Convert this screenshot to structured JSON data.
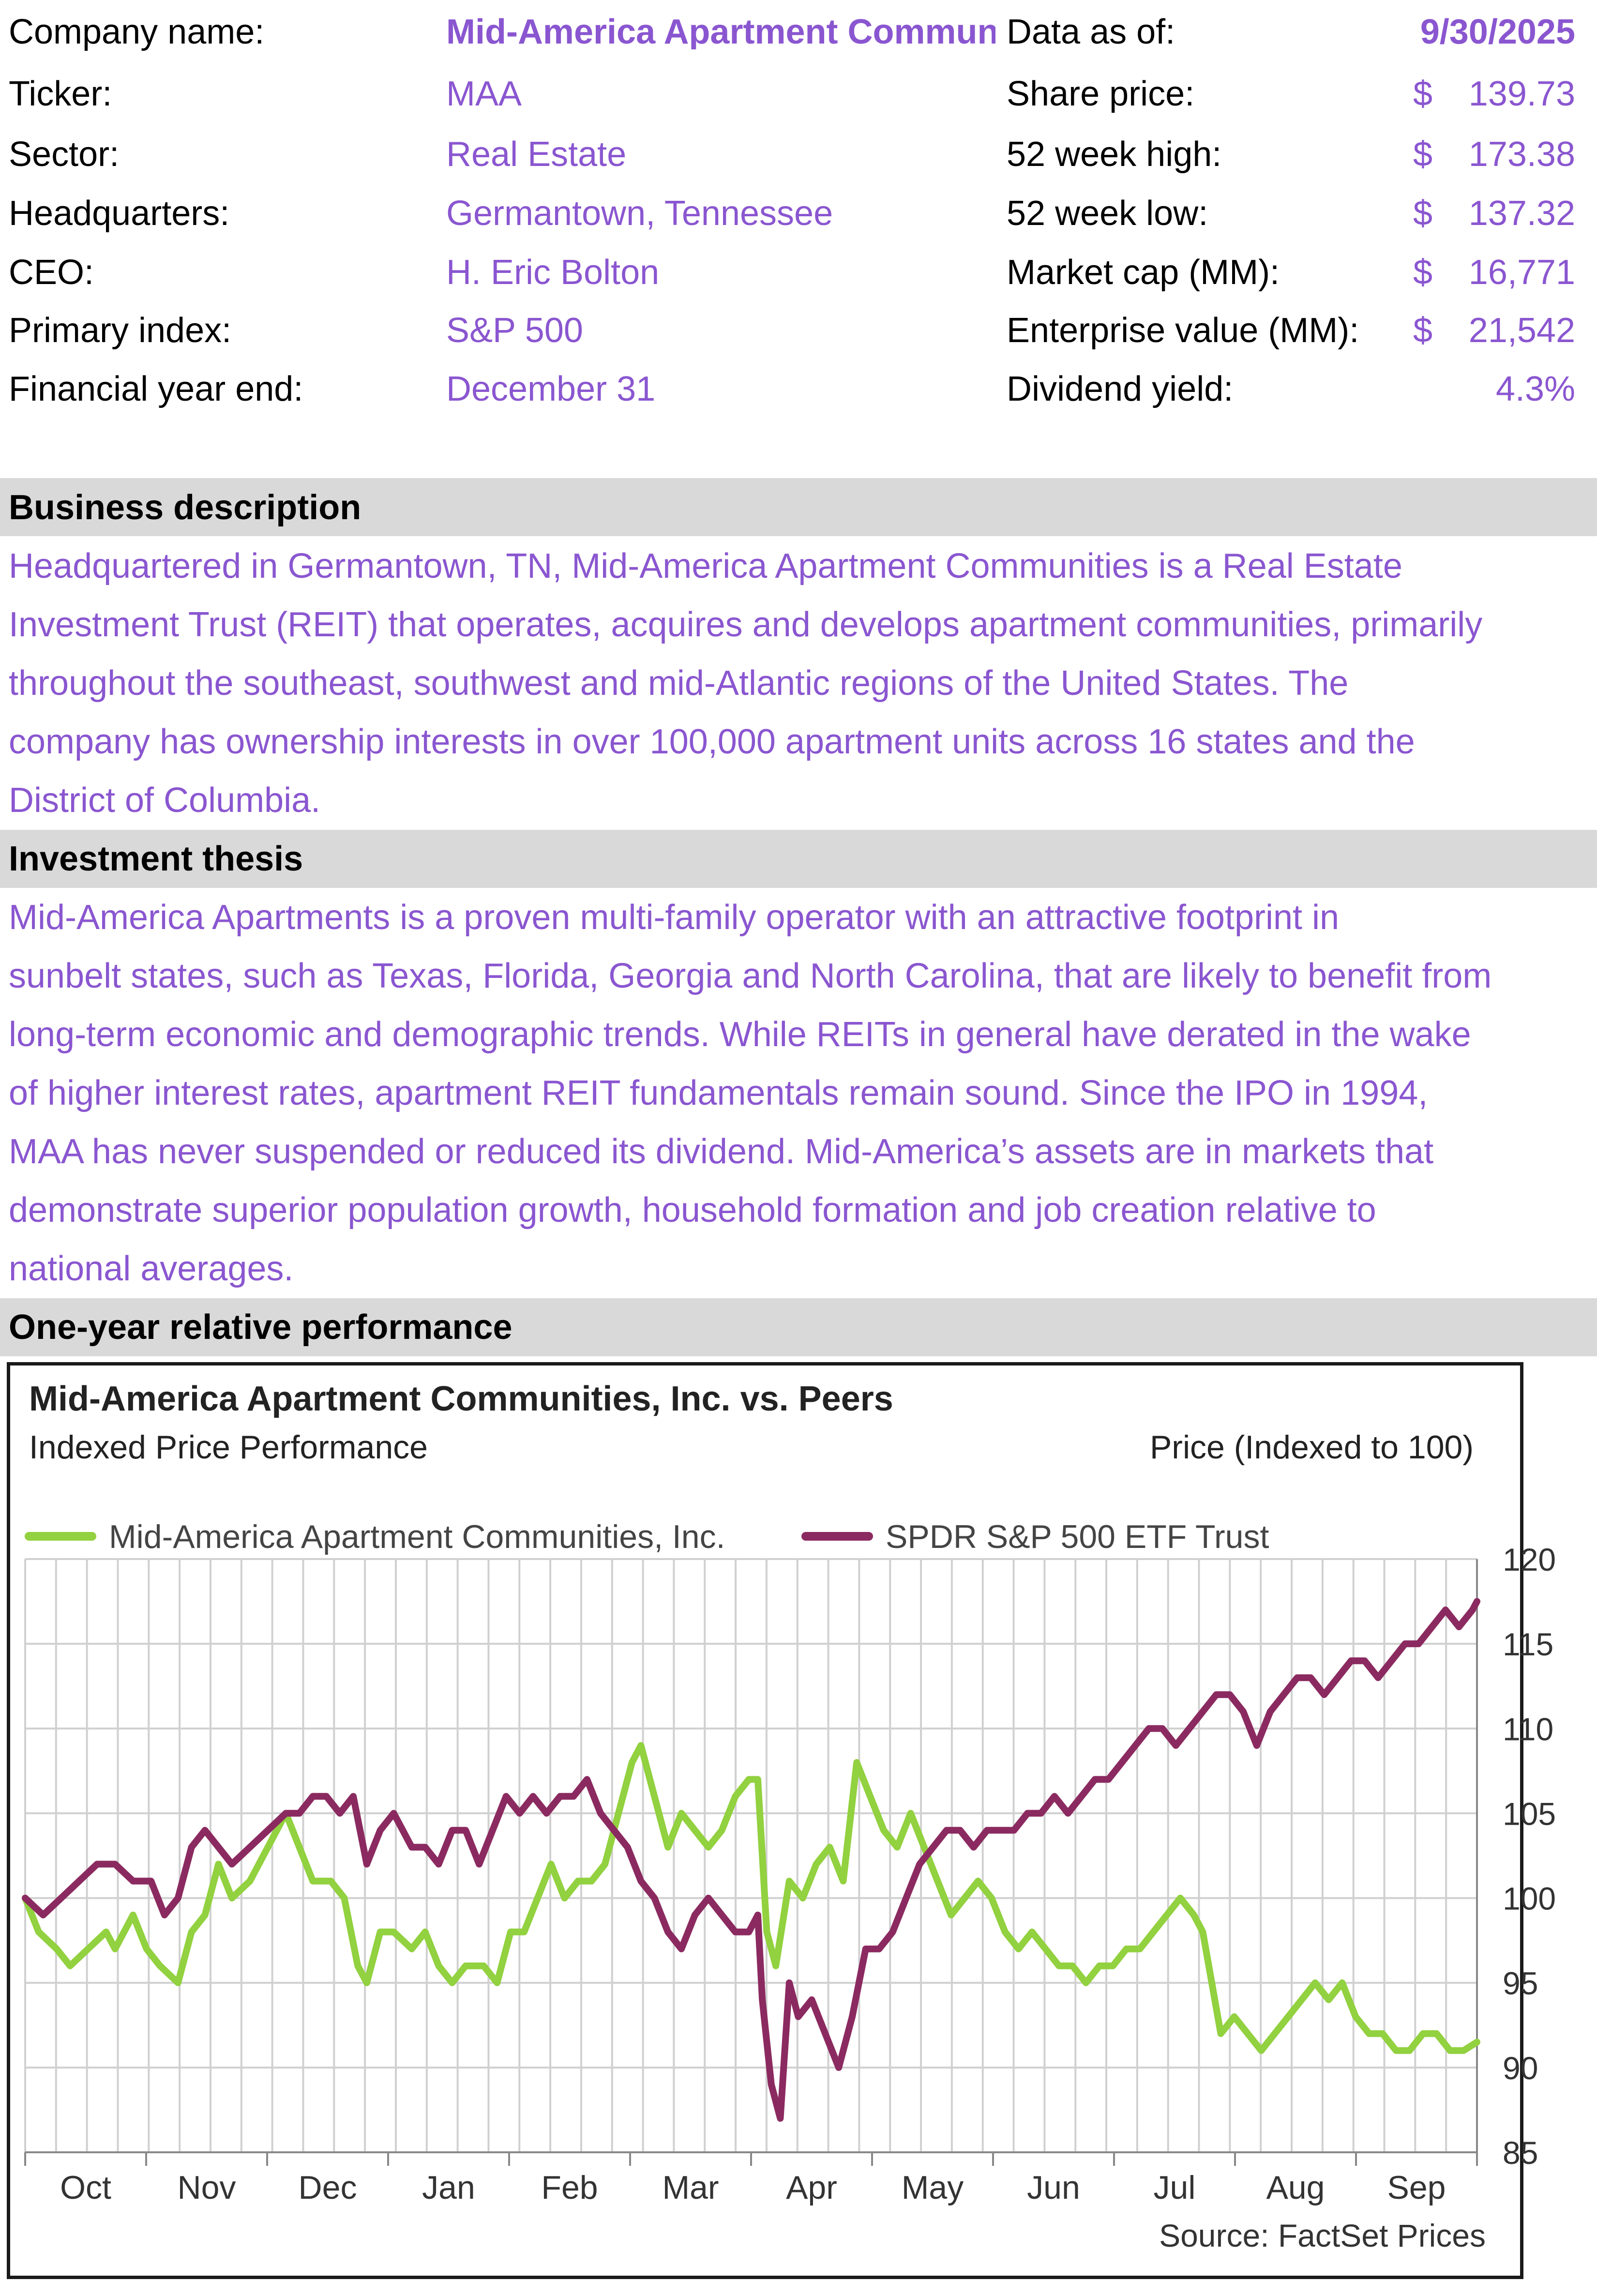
{
  "colors": {
    "accent_purple": "#8a56d0",
    "section_gray": "#d9d9d9",
    "series_maa": "#92d13f",
    "series_spy": "#8b2a60"
  },
  "profile": {
    "company_name_label": "Company name:",
    "company_name_value": "Mid-America Apartment Communities, Inc.",
    "ticker_label": "Ticker:",
    "ticker_value": "MAA",
    "sector_label": "Sector:",
    "sector_value": "Real Estate",
    "hq_label": "Headquarters:",
    "hq_value": "Germantown, Tennessee",
    "ceo_label": "CEO:",
    "ceo_value": "H. Eric Bolton",
    "index_label": "Primary index:",
    "index_value": "S&P 500",
    "fye_label": "Financial year end:",
    "fye_value": "December 31"
  },
  "market": {
    "data_as_of_label": "Data as of:",
    "data_as_of_value": "9/30/2025",
    "share_price_label": "Share price:",
    "share_price_currency": "$",
    "share_price_value": "139.73",
    "high_label": "52 week high:",
    "high_currency": "$",
    "high_value": "173.38",
    "low_label": "52 week low:",
    "low_currency": "$",
    "low_value": "137.32",
    "mktcap_label": "Market cap (MM):",
    "mktcap_currency": "$",
    "mktcap_value": "16,771",
    "ev_label": "Enterprise value (MM):",
    "ev_currency": "$",
    "ev_value": "21,542",
    "yield_label": "Dividend yield:",
    "yield_value": "4.3%"
  },
  "business": {
    "heading": "Business description",
    "lines": [
      "Headquartered in Germantown, TN, Mid-America Apartment Communities is a Real Estate",
      "Investment Trust (REIT) that operates, acquires and develops apartment communities, primarily",
      "throughout the southeast, southwest and mid-Atlantic regions of the United States. The",
      "company has ownership interests in over 100,000 apartment units across 16 states and the",
      "District of Columbia."
    ]
  },
  "thesis": {
    "heading": "Investment thesis",
    "lines": [
      "Mid-America Apartments is a proven multi-family operator with an attractive footprint in",
      "sunbelt states, such as Texas, Florida, Georgia and North Carolina, that are likely to benefit from",
      "long-term economic and demographic trends.  While REITs in general have derated in the wake",
      "of higher interest rates, apartment REIT fundamentals remain sound. Since the IPO in 1994,",
      "MAA has never suspended or reduced its dividend. Mid-America’s assets are in markets that",
      "demonstrate superior population growth, household formation and job creation relative to",
      "national averages."
    ]
  },
  "performance": {
    "heading": "One-year relative performance"
  },
  "chart_data": {
    "type": "line",
    "title": "Mid-America Apartment Communities, Inc. vs. Peers",
    "subtitle": "Indexed Price Performance",
    "ylabel": "Price (Indexed to 100)",
    "source": "Source: FactSet Prices",
    "ylim": [
      85,
      120
    ],
    "yticks": [
      85,
      90,
      95,
      100,
      105,
      110,
      115,
      120
    ],
    "months": [
      "Oct",
      "Nov",
      "Dec",
      "Jan",
      "Feb",
      "Mar",
      "Apr",
      "May",
      "Jun",
      "Jul",
      "Aug",
      "Sep"
    ],
    "legend_position": "top-left",
    "series": [
      {
        "name": "Mid-America Apartment Communities, Inc.",
        "color": "#92d13f",
        "points": [
          [
            0,
            100
          ],
          [
            3,
            98
          ],
          [
            7,
            97
          ],
          [
            10,
            96
          ],
          [
            14,
            97
          ],
          [
            18,
            98
          ],
          [
            20,
            97
          ],
          [
            24,
            99
          ],
          [
            27,
            97
          ],
          [
            30,
            96
          ],
          [
            34,
            95
          ],
          [
            37,
            98
          ],
          [
            40,
            99
          ],
          [
            43,
            102
          ],
          [
            46,
            100
          ],
          [
            50,
            101
          ],
          [
            54,
            103
          ],
          [
            58,
            105
          ],
          [
            61,
            103
          ],
          [
            64,
            101
          ],
          [
            68,
            101
          ],
          [
            71,
            100
          ],
          [
            74,
            96
          ],
          [
            76,
            95
          ],
          [
            79,
            98
          ],
          [
            82,
            98
          ],
          [
            86,
            97
          ],
          [
            89,
            98
          ],
          [
            92,
            96
          ],
          [
            95,
            95
          ],
          [
            98,
            96
          ],
          [
            102,
            96
          ],
          [
            105,
            95
          ],
          [
            108,
            98
          ],
          [
            111,
            98
          ],
          [
            114,
            100
          ],
          [
            117,
            102
          ],
          [
            120,
            100
          ],
          [
            123,
            101
          ],
          [
            126,
            101
          ],
          [
            129,
            102
          ],
          [
            132,
            105
          ],
          [
            135,
            108
          ],
          [
            137,
            109
          ],
          [
            140,
            106
          ],
          [
            143,
            103
          ],
          [
            146,
            105
          ],
          [
            149,
            104
          ],
          [
            152,
            103
          ],
          [
            155,
            104
          ],
          [
            158,
            106
          ],
          [
            161,
            107
          ],
          [
            163,
            107
          ],
          [
            165,
            98
          ],
          [
            167,
            96
          ],
          [
            170,
            101
          ],
          [
            173,
            100
          ],
          [
            176,
            102
          ],
          [
            179,
            103
          ],
          [
            182,
            101
          ],
          [
            185,
            108
          ],
          [
            188,
            106
          ],
          [
            191,
            104
          ],
          [
            194,
            103
          ],
          [
            197,
            105
          ],
          [
            200,
            103
          ],
          [
            203,
            101
          ],
          [
            206,
            99
          ],
          [
            209,
            100
          ],
          [
            212,
            101
          ],
          [
            215,
            100
          ],
          [
            218,
            98
          ],
          [
            221,
            97
          ],
          [
            224,
            98
          ],
          [
            227,
            97
          ],
          [
            230,
            96
          ],
          [
            233,
            96
          ],
          [
            236,
            95
          ],
          [
            239,
            96
          ],
          [
            242,
            96
          ],
          [
            245,
            97
          ],
          [
            248,
            97
          ],
          [
            251,
            98
          ],
          [
            254,
            99
          ],
          [
            257,
            100
          ],
          [
            260,
            99
          ],
          [
            262,
            98
          ],
          [
            264,
            95
          ],
          [
            266,
            92
          ],
          [
            269,
            93
          ],
          [
            272,
            92
          ],
          [
            275,
            91
          ],
          [
            278,
            92
          ],
          [
            281,
            93
          ],
          [
            284,
            94
          ],
          [
            287,
            95
          ],
          [
            290,
            94
          ],
          [
            293,
            95
          ],
          [
            296,
            93
          ],
          [
            299,
            92
          ],
          [
            302,
            92
          ],
          [
            305,
            91
          ],
          [
            308,
            91
          ],
          [
            311,
            92
          ],
          [
            314,
            92
          ],
          [
            317,
            91
          ],
          [
            320,
            91
          ],
          [
            323,
            91.5
          ]
        ]
      },
      {
        "name": "SPDR S&P 500 ETF Trust",
        "color": "#8b2a60",
        "points": [
          [
            0,
            100
          ],
          [
            4,
            99
          ],
          [
            8,
            100
          ],
          [
            12,
            101
          ],
          [
            16,
            102
          ],
          [
            20,
            102
          ],
          [
            24,
            101
          ],
          [
            28,
            101
          ],
          [
            31,
            99
          ],
          [
            34,
            100
          ],
          [
            37,
            103
          ],
          [
            40,
            104
          ],
          [
            43,
            103
          ],
          [
            46,
            102
          ],
          [
            50,
            103
          ],
          [
            54,
            104
          ],
          [
            58,
            105
          ],
          [
            61,
            105
          ],
          [
            64,
            106
          ],
          [
            67,
            106
          ],
          [
            70,
            105
          ],
          [
            73,
            106
          ],
          [
            76,
            102
          ],
          [
            79,
            104
          ],
          [
            82,
            105
          ],
          [
            86,
            103
          ],
          [
            89,
            103
          ],
          [
            92,
            102
          ],
          [
            95,
            104
          ],
          [
            98,
            104
          ],
          [
            101,
            102
          ],
          [
            104,
            104
          ],
          [
            107,
            106
          ],
          [
            110,
            105
          ],
          [
            113,
            106
          ],
          [
            116,
            105
          ],
          [
            119,
            106
          ],
          [
            122,
            106
          ],
          [
            125,
            107
          ],
          [
            128,
            105
          ],
          [
            131,
            104
          ],
          [
            134,
            103
          ],
          [
            137,
            101
          ],
          [
            140,
            100
          ],
          [
            143,
            98
          ],
          [
            146,
            97
          ],
          [
            149,
            99
          ],
          [
            152,
            100
          ],
          [
            155,
            99
          ],
          [
            158,
            98
          ],
          [
            161,
            98
          ],
          [
            163,
            99
          ],
          [
            164,
            94
          ],
          [
            166,
            89
          ],
          [
            168,
            87
          ],
          [
            170,
            95
          ],
          [
            172,
            93
          ],
          [
            175,
            94
          ],
          [
            178,
            92
          ],
          [
            181,
            90
          ],
          [
            184,
            93
          ],
          [
            187,
            97
          ],
          [
            190,
            97
          ],
          [
            193,
            98
          ],
          [
            196,
            100
          ],
          [
            199,
            102
          ],
          [
            202,
            103
          ],
          [
            205,
            104
          ],
          [
            208,
            104
          ],
          [
            211,
            103
          ],
          [
            214,
            104
          ],
          [
            217,
            104
          ],
          [
            220,
            104
          ],
          [
            223,
            105
          ],
          [
            226,
            105
          ],
          [
            229,
            106
          ],
          [
            232,
            105
          ],
          [
            235,
            106
          ],
          [
            238,
            107
          ],
          [
            241,
            107
          ],
          [
            244,
            108
          ],
          [
            247,
            109
          ],
          [
            250,
            110
          ],
          [
            253,
            110
          ],
          [
            256,
            109
          ],
          [
            259,
            110
          ],
          [
            262,
            111
          ],
          [
            265,
            112
          ],
          [
            268,
            112
          ],
          [
            271,
            111
          ],
          [
            274,
            109
          ],
          [
            277,
            111
          ],
          [
            280,
            112
          ],
          [
            283,
            113
          ],
          [
            286,
            113
          ],
          [
            289,
            112
          ],
          [
            292,
            113
          ],
          [
            295,
            114
          ],
          [
            298,
            114
          ],
          [
            301,
            113
          ],
          [
            304,
            114
          ],
          [
            307,
            115
          ],
          [
            310,
            115
          ],
          [
            313,
            116
          ],
          [
            316,
            117
          ],
          [
            319,
            116
          ],
          [
            322,
            117
          ],
          [
            323,
            117.5
          ]
        ]
      }
    ]
  }
}
